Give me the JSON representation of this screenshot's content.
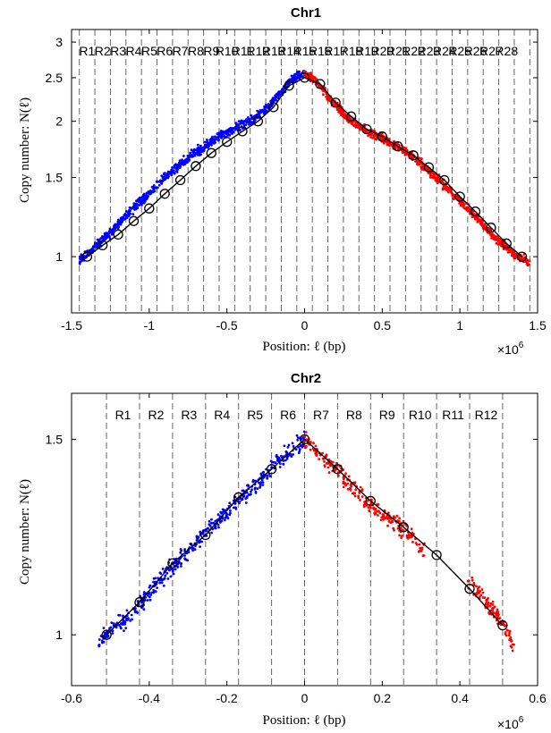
{
  "chart_data": [
    {
      "type": "scatter",
      "title": "Chr1",
      "xlabel": "Position: ℓ (bp)",
      "ylabel": "Copy number: N(ℓ)",
      "x_multiplier": "×10",
      "x_exponent": "6",
      "xlim": [
        -1.5,
        1.5
      ],
      "ylim": [
        0.75,
        3.2
      ],
      "y_scale": "log",
      "grid": false,
      "x_ticks": [
        -1.5,
        -1,
        -0.5,
        0,
        0.5,
        1,
        1.5
      ],
      "x_tick_labels": [
        "-1.5",
        "-1",
        "-0.5",
        "0",
        "0.5",
        "1",
        "1.5"
      ],
      "y_ticks": [
        1,
        1.5,
        2,
        2.5,
        3
      ],
      "y_tick_labels": [
        "1",
        "1.5",
        "2",
        "2.5",
        "3"
      ],
      "region_boundaries": [
        -1.45,
        -1.35,
        -1.25,
        -1.15,
        -1.05,
        -0.95,
        -0.85,
        -0.75,
        -0.65,
        -0.55,
        -0.45,
        -0.35,
        -0.25,
        -0.15,
        -0.05,
        0.05,
        0.15,
        0.25,
        0.35,
        0.45,
        0.55,
        0.65,
        0.75,
        0.85,
        0.95,
        1.05,
        1.15,
        1.25,
        1.35,
        1.45
      ],
      "regions": [
        {
          "label": "R1",
          "x": -1.4
        },
        {
          "label": "R2",
          "x": -1.3
        },
        {
          "label": "R3",
          "x": -1.2
        },
        {
          "label": "R4",
          "x": -1.1
        },
        {
          "label": "R5",
          "x": -1.0
        },
        {
          "label": "R6",
          "x": -0.9
        },
        {
          "label": "R7",
          "x": -0.8
        },
        {
          "label": "R8",
          "x": -0.7
        },
        {
          "label": "R9",
          "x": -0.6
        },
        {
          "label": "R10",
          "x": -0.5
        },
        {
          "label": "R11",
          "x": -0.4
        },
        {
          "label": "R12",
          "x": -0.3
        },
        {
          "label": "R13",
          "x": -0.2
        },
        {
          "label": "R14",
          "x": -0.1
        },
        {
          "label": "R15",
          "x": 0.0
        },
        {
          "label": "R16",
          "x": 0.1
        },
        {
          "label": "R17",
          "x": 0.2
        },
        {
          "label": "R18",
          "x": 0.3
        },
        {
          "label": "R19",
          "x": 0.4
        },
        {
          "label": "R20",
          "x": 0.5
        },
        {
          "label": "R21",
          "x": 0.6
        },
        {
          "label": "R22",
          "x": 0.7
        },
        {
          "label": "R23",
          "x": 0.8
        },
        {
          "label": "R24",
          "x": 0.9
        },
        {
          "label": "R25",
          "x": 1.0
        },
        {
          "label": "R26",
          "x": 1.1
        },
        {
          "label": "R27",
          "x": 1.2
        },
        {
          "label": "R28",
          "x": 1.3
        }
      ],
      "series": [
        {
          "color": "#0000ff",
          "points": [
            [
              -1.45,
              0.98
            ],
            [
              -1.43,
              1.0
            ],
            [
              -1.4,
              1.01
            ],
            [
              -1.35,
              1.05
            ],
            [
              -1.3,
              1.09
            ],
            [
              -1.25,
              1.13
            ],
            [
              -1.2,
              1.18
            ],
            [
              -1.15,
              1.23
            ],
            [
              -1.1,
              1.28
            ],
            [
              -1.05,
              1.33
            ],
            [
              -1.0,
              1.38
            ],
            [
              -0.95,
              1.44
            ],
            [
              -0.9,
              1.5
            ],
            [
              -0.85,
              1.55
            ],
            [
              -0.8,
              1.6
            ],
            [
              -0.75,
              1.66
            ],
            [
              -0.7,
              1.71
            ],
            [
              -0.65,
              1.75
            ],
            [
              -0.6,
              1.8
            ],
            [
              -0.55,
              1.85
            ],
            [
              -0.5,
              1.89
            ],
            [
              -0.45,
              1.93
            ],
            [
              -0.4,
              1.97
            ],
            [
              -0.35,
              2.01
            ],
            [
              -0.3,
              2.06
            ],
            [
              -0.25,
              2.12
            ],
            [
              -0.2,
              2.22
            ],
            [
              -0.15,
              2.33
            ],
            [
              -0.1,
              2.44
            ],
            [
              -0.05,
              2.52
            ],
            [
              0.0,
              2.55
            ]
          ]
        },
        {
          "color": "#ff0000",
          "points": [
            [
              0.0,
              2.55
            ],
            [
              0.05,
              2.5
            ],
            [
              0.1,
              2.4
            ],
            [
              0.15,
              2.28
            ],
            [
              0.2,
              2.17
            ],
            [
              0.25,
              2.08
            ],
            [
              0.3,
              2.0
            ],
            [
              0.35,
              1.96
            ],
            [
              0.4,
              1.91
            ],
            [
              0.45,
              1.87
            ],
            [
              0.5,
              1.83
            ],
            [
              0.55,
              1.79
            ],
            [
              0.6,
              1.75
            ],
            [
              0.65,
              1.71
            ],
            [
              0.7,
              1.66
            ],
            [
              0.75,
              1.61
            ],
            [
              0.8,
              1.55
            ],
            [
              0.85,
              1.5
            ],
            [
              0.9,
              1.44
            ],
            [
              0.95,
              1.38
            ],
            [
              1.0,
              1.33
            ],
            [
              1.05,
              1.28
            ],
            [
              1.1,
              1.23
            ],
            [
              1.15,
              1.18
            ],
            [
              1.2,
              1.13
            ],
            [
              1.25,
              1.09
            ],
            [
              1.3,
              1.05
            ],
            [
              1.35,
              1.01
            ],
            [
              1.4,
              0.99
            ],
            [
              1.45,
              0.97
            ]
          ]
        }
      ],
      "fit_line": {
        "color": "#000000",
        "points": [
          [
            -1.4,
            1.0
          ],
          [
            -1.3,
            1.06
          ],
          [
            -1.2,
            1.12
          ],
          [
            -1.1,
            1.2
          ],
          [
            -1.0,
            1.28
          ],
          [
            -0.9,
            1.38
          ],
          [
            -0.8,
            1.48
          ],
          [
            -0.7,
            1.59
          ],
          [
            -0.6,
            1.7
          ],
          [
            -0.5,
            1.8
          ],
          [
            -0.4,
            1.9
          ],
          [
            -0.3,
            2.0
          ],
          [
            -0.2,
            2.15
          ],
          [
            -0.1,
            2.4
          ],
          [
            0.0,
            2.5
          ],
          [
            0.1,
            2.42
          ],
          [
            0.2,
            2.2
          ],
          [
            0.3,
            2.05
          ],
          [
            0.4,
            1.92
          ],
          [
            0.5,
            1.85
          ],
          [
            0.6,
            1.76
          ],
          [
            0.7,
            1.68
          ],
          [
            0.8,
            1.58
          ],
          [
            0.9,
            1.48
          ],
          [
            1.0,
            1.36
          ],
          [
            1.1,
            1.26
          ],
          [
            1.2,
            1.16
          ],
          [
            1.3,
            1.07
          ],
          [
            1.4,
            1.0
          ]
        ]
      }
    },
    {
      "type": "scatter",
      "title": "Chr2",
      "xlabel": "Position: ℓ (bp)",
      "ylabel": "Copy number: N(ℓ)",
      "x_multiplier": "×10",
      "x_exponent": "6",
      "xlim": [
        -0.6,
        0.6
      ],
      "ylim": [
        0.9,
        1.65
      ],
      "y_scale": "log",
      "grid": false,
      "x_ticks": [
        -0.6,
        -0.4,
        -0.2,
        0,
        0.2,
        0.4,
        0.6
      ],
      "x_tick_labels": [
        "-0.6",
        "-0.4",
        "-0.2",
        "0",
        "0.2",
        "0.4",
        "0.6"
      ],
      "y_ticks": [
        1,
        1.5
      ],
      "y_tick_labels": [
        "1",
        "1.5"
      ],
      "region_boundaries": [
        -0.51,
        -0.425,
        -0.34,
        -0.255,
        -0.17,
        -0.085,
        0.0,
        0.085,
        0.17,
        0.255,
        0.34,
        0.425,
        0.51
      ],
      "regions": [
        {
          "label": "R1",
          "x": -0.4675
        },
        {
          "label": "R2",
          "x": -0.3825
        },
        {
          "label": "R3",
          "x": -0.2975
        },
        {
          "label": "R4",
          "x": -0.2125
        },
        {
          "label": "R5",
          "x": -0.1275
        },
        {
          "label": "R6",
          "x": -0.0425
        },
        {
          "label": "R7",
          "x": 0.0425
        },
        {
          "label": "R8",
          "x": 0.1275
        },
        {
          "label": "R9",
          "x": 0.2125
        },
        {
          "label": "R10",
          "x": 0.2975
        },
        {
          "label": "R11",
          "x": 0.3825
        },
        {
          "label": "R12",
          "x": 0.4675
        }
      ],
      "series": [
        {
          "color": "#0000ff",
          "points": [
            [
              -0.53,
              0.98
            ],
            [
              -0.51,
              1.0
            ],
            [
              -0.48,
              1.02
            ],
            [
              -0.45,
              1.04
            ],
            [
              -0.42,
              1.07
            ],
            [
              -0.39,
              1.1
            ],
            [
              -0.36,
              1.13
            ],
            [
              -0.33,
              1.16
            ],
            [
              -0.3,
              1.19
            ],
            [
              -0.27,
              1.22
            ],
            [
              -0.24,
              1.25
            ],
            [
              -0.21,
              1.28
            ],
            [
              -0.18,
              1.31
            ],
            [
              -0.15,
              1.34
            ],
            [
              -0.12,
              1.37
            ],
            [
              -0.09,
              1.41
            ],
            [
              -0.06,
              1.44
            ],
            [
              -0.03,
              1.47
            ],
            [
              0.0,
              1.5
            ]
          ]
        },
        {
          "color": "#ff0000",
          "points": [
            [
              0.0,
              1.5
            ],
            [
              0.03,
              1.46
            ],
            [
              0.06,
              1.43
            ],
            [
              0.09,
              1.4
            ],
            [
              0.12,
              1.36
            ],
            [
              0.15,
              1.33
            ],
            [
              0.18,
              1.3
            ],
            [
              0.21,
              1.28
            ],
            [
              0.24,
              1.26
            ],
            [
              0.27,
              1.23
            ],
            [
              0.3,
              1.2
            ],
            [
              0.43,
              1.11
            ],
            [
              0.46,
              1.08
            ],
            [
              0.49,
              1.05
            ],
            [
              0.52,
              1.01
            ],
            [
              0.54,
              0.97
            ]
          ]
        }
      ],
      "fit_line": {
        "color": "#000000",
        "points": [
          [
            -0.51,
            1.0
          ],
          [
            -0.425,
            1.07
          ],
          [
            -0.34,
            1.16
          ],
          [
            -0.255,
            1.23
          ],
          [
            -0.17,
            1.33
          ],
          [
            -0.085,
            1.41
          ],
          [
            0.0,
            1.5
          ],
          [
            0.085,
            1.41
          ],
          [
            0.17,
            1.32
          ],
          [
            0.255,
            1.25
          ],
          [
            0.34,
            1.18
          ],
          [
            0.425,
            1.1
          ],
          [
            0.51,
            1.02
          ]
        ]
      }
    }
  ]
}
